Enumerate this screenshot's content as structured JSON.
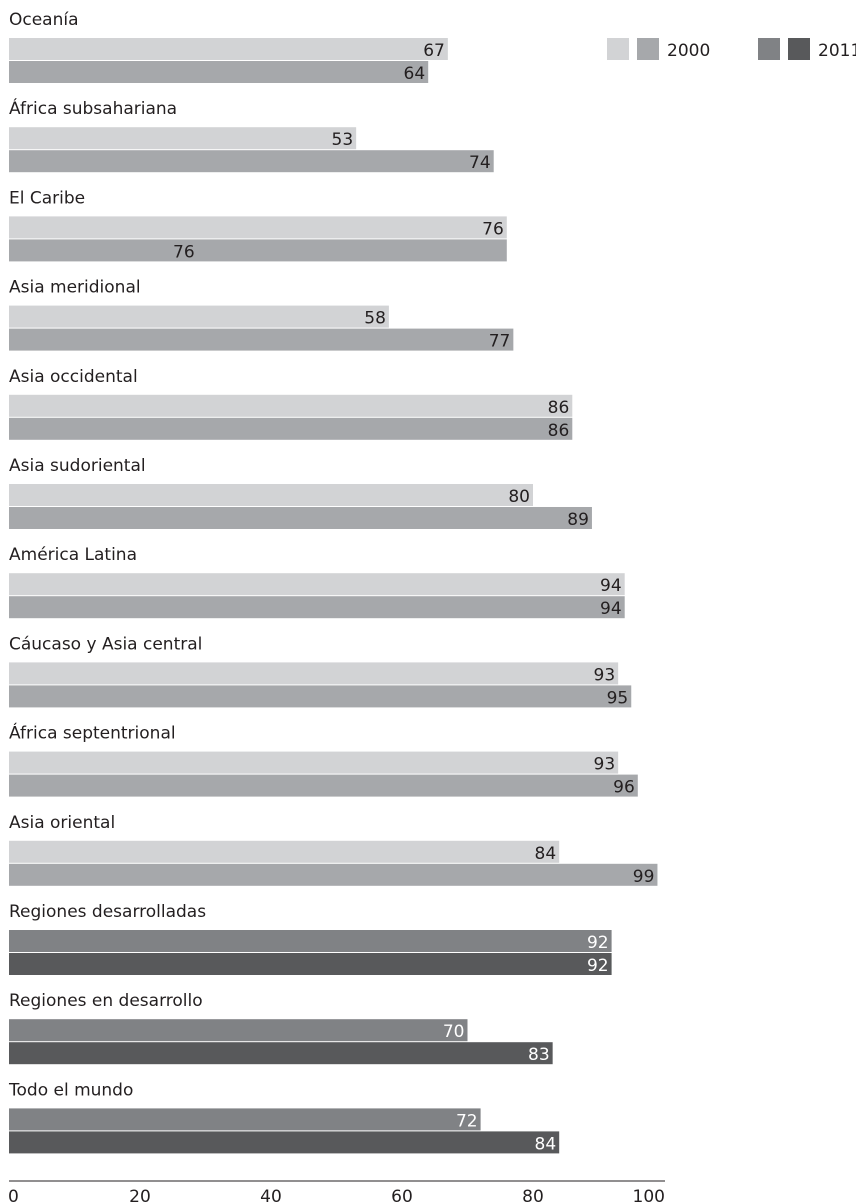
{
  "chart_data": {
    "type": "bar",
    "orientation": "horizontal",
    "title": "",
    "xlabel": "",
    "ylabel": "",
    "xlim": [
      0,
      100
    ],
    "x_ticks": [
      0,
      20,
      40,
      60,
      80,
      100
    ],
    "grid": false,
    "legend": {
      "placement": "top-right",
      "entries": [
        {
          "name": "2000",
          "colors": [
            "#d2d3d5",
            "#a6a8ab"
          ]
        },
        {
          "name": "2011",
          "colors": [
            "#808285",
            "#58595b"
          ]
        }
      ]
    },
    "series": [
      {
        "name": "2000",
        "values": [
          67,
          53,
          76,
          58,
          86,
          80,
          94,
          93,
          93,
          84,
          92,
          70,
          72
        ]
      },
      {
        "name": "2011",
        "values": [
          64,
          74,
          76,
          77,
          86,
          89,
          94,
          95,
          96,
          99,
          92,
          83,
          84
        ]
      }
    ],
    "categories": [
      "Oceanía",
      "África subsahariana",
      "El Caribe",
      "Asia meridional",
      "Asia occidental",
      "Asia sudoriental",
      "América Latina",
      "Cáucaso y Asia central",
      "África septentrional",
      "Asia oriental",
      "Regiones desarrolladas",
      "Regiones en desarrollo",
      "Todo el mundo"
    ],
    "category_group": [
      "region",
      "region",
      "region",
      "region",
      "region",
      "region",
      "region",
      "region",
      "region",
      "region",
      "aggregate",
      "aggregate",
      "aggregate"
    ],
    "colors": {
      "region_2000": "#d2d3d5",
      "region_2011": "#a6a8ab",
      "aggregate_2000": "#808285",
      "aggregate_2011": "#58595b",
      "label_dark": "#231f20",
      "label_light": "#ffffff",
      "axis": "#231f20"
    }
  }
}
